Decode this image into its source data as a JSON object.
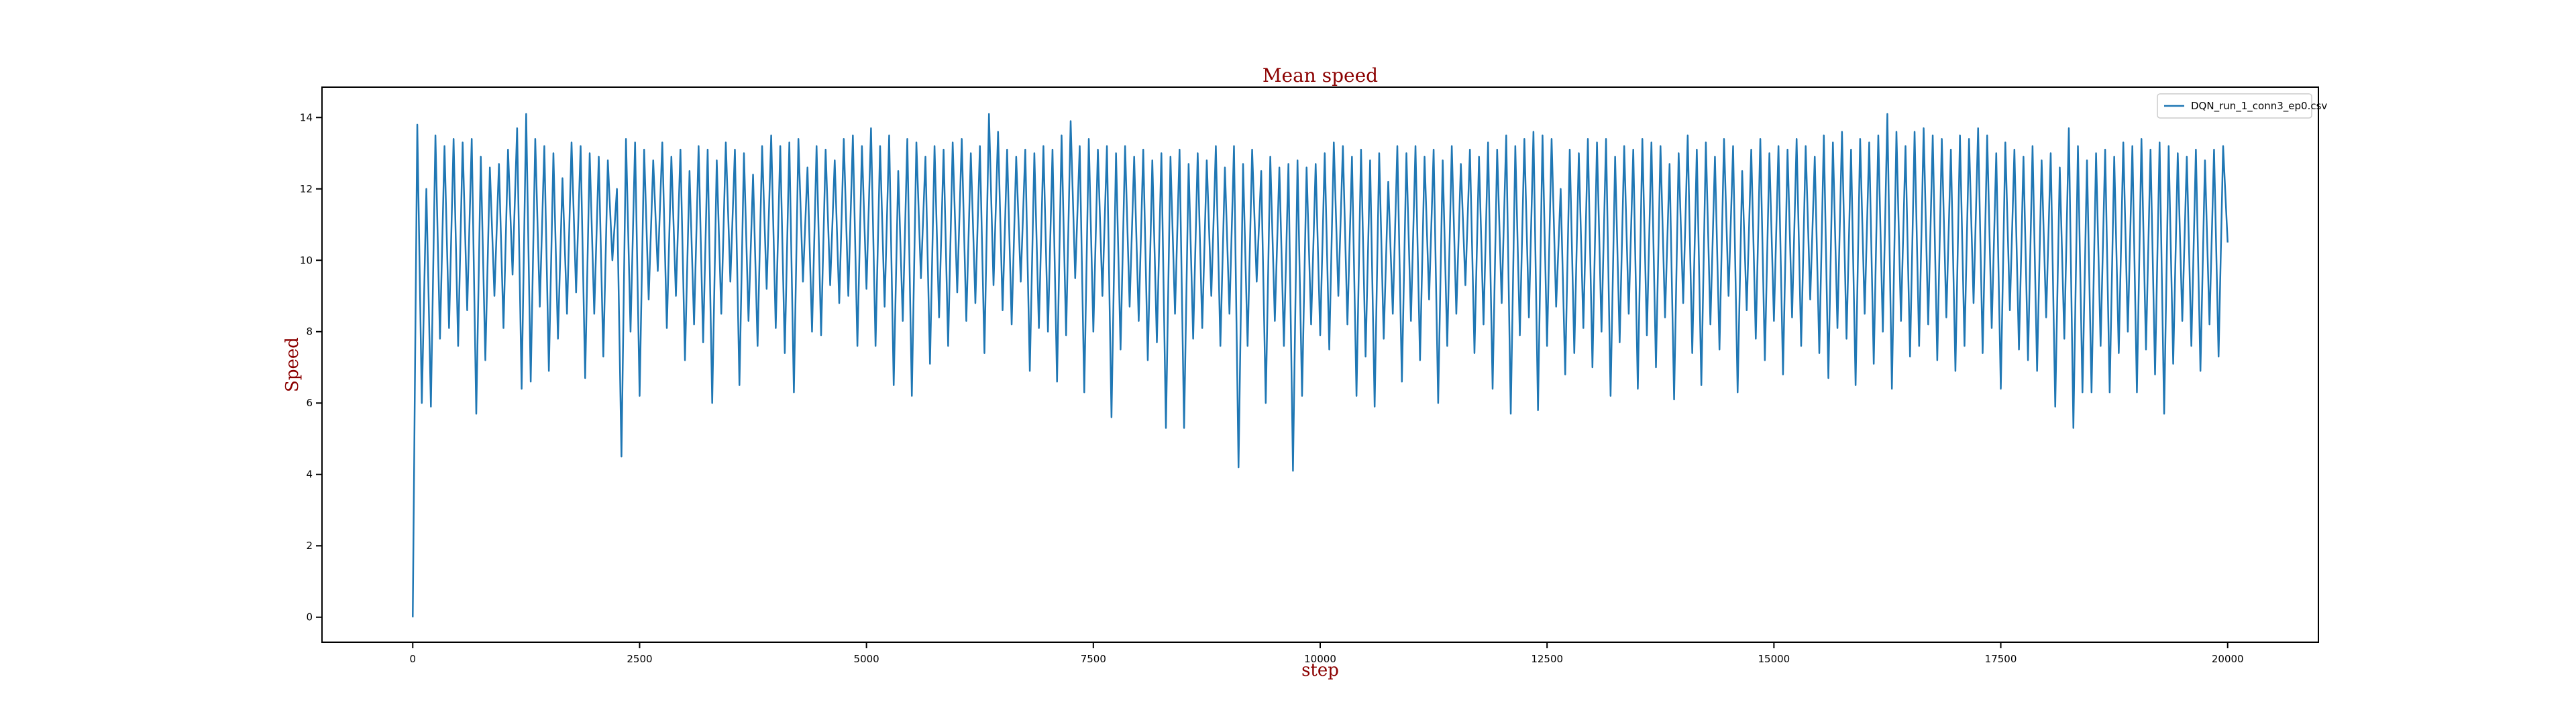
{
  "chart_data": {
    "type": "line",
    "title": "Mean speed",
    "xlabel": "step",
    "ylabel": "Speed",
    "legend": "upper right",
    "xlim": [
      -1000,
      21000
    ],
    "ylim": [
      -0.7,
      14.85
    ],
    "xticks": [
      0,
      2500,
      5000,
      7500,
      10000,
      12500,
      15000,
      17500,
      20000
    ],
    "yticks": [
      0,
      2,
      4,
      6,
      8,
      10,
      12,
      14
    ],
    "x": [
      0,
      50,
      100,
      150,
      200,
      250,
      300,
      350,
      400,
      450,
      500,
      550,
      600,
      650,
      700,
      750,
      800,
      850,
      900,
      950,
      1000,
      1050,
      1100,
      1150,
      1200,
      1250,
      1300,
      1350,
      1400,
      1450,
      1500,
      1550,
      1600,
      1650,
      1700,
      1750,
      1800,
      1850,
      1900,
      1950,
      2000,
      2050,
      2100,
      2150,
      2200,
      2250,
      2300,
      2350,
      2400,
      2450,
      2500,
      2550,
      2600,
      2650,
      2700,
      2750,
      2800,
      2850,
      2900,
      2950,
      3000,
      3050,
      3100,
      3150,
      3200,
      3250,
      3300,
      3350,
      3400,
      3450,
      3500,
      3550,
      3600,
      3650,
      3700,
      3750,
      3800,
      3850,
      3900,
      3950,
      4000,
      4050,
      4100,
      4150,
      4200,
      4250,
      4300,
      4350,
      4400,
      4450,
      4500,
      4550,
      4600,
      4650,
      4700,
      4750,
      4800,
      4850,
      4900,
      4950,
      5000,
      5050,
      5100,
      5150,
      5200,
      5250,
      5300,
      5350,
      5400,
      5450,
      5500,
      5550,
      5600,
      5650,
      5700,
      5750,
      5800,
      5850,
      5900,
      5950,
      6000,
      6050,
      6100,
      6150,
      6200,
      6250,
      6300,
      6350,
      6400,
      6450,
      6500,
      6550,
      6600,
      6650,
      6700,
      6750,
      6800,
      6850,
      6900,
      6950,
      7000,
      7050,
      7100,
      7150,
      7200,
      7250,
      7300,
      7350,
      7400,
      7450,
      7500,
      7550,
      7600,
      7650,
      7700,
      7750,
      7800,
      7850,
      7900,
      7950,
      8000,
      8050,
      8100,
      8150,
      8200,
      8250,
      8300,
      8350,
      8400,
      8450,
      8500,
      8550,
      8600,
      8650,
      8700,
      8750,
      8800,
      8850,
      8900,
      8950,
      9000,
      9050,
      9100,
      9150,
      9200,
      9250,
      9300,
      9350,
      9400,
      9450,
      9500,
      9550,
      9600,
      9650,
      9700,
      9750,
      9800,
      9850,
      9900,
      9950,
      10000,
      10050,
      10100,
      10150,
      10200,
      10250,
      10300,
      10350,
      10400,
      10450,
      10500,
      10550,
      10600,
      10650,
      10700,
      10750,
      10800,
      10850,
      10900,
      10950,
      11000,
      11050,
      11100,
      11150,
      11200,
      11250,
      11300,
      11350,
      11400,
      11450,
      11500,
      11550,
      11600,
      11650,
      11700,
      11750,
      11800,
      11850,
      11900,
      11950,
      12000,
      12050,
      12100,
      12150,
      12200,
      12250,
      12300,
      12350,
      12400,
      12450,
      12500,
      12550,
      12600,
      12650,
      12700,
      12750,
      12800,
      12850,
      12900,
      12950,
      13000,
      13050,
      13100,
      13150,
      13200,
      13250,
      13300,
      13350,
      13400,
      13450,
      13500,
      13550,
      13600,
      13650,
      13700,
      13750,
      13800,
      13850,
      13900,
      13950,
      14000,
      14050,
      14100,
      14150,
      14200,
      14250,
      14300,
      14350,
      14400,
      14450,
      14500,
      14550,
      14600,
      14650,
      14700,
      14750,
      14800,
      14850,
      14900,
      14950,
      15000,
      15050,
      15100,
      15150,
      15200,
      15250,
      15300,
      15350,
      15400,
      15450,
      15500,
      15550,
      15600,
      15650,
      15700,
      15750,
      15800,
      15850,
      15900,
      15950,
      16000,
      16050,
      16100,
      16150,
      16200,
      16250,
      16300,
      16350,
      16400,
      16450,
      16500,
      16550,
      16600,
      16650,
      16700,
      16750,
      16800,
      16850,
      16900,
      16950,
      17000,
      17050,
      17100,
      17150,
      17200,
      17250,
      17300,
      17350,
      17400,
      17450,
      17500,
      17550,
      17600,
      17650,
      17700,
      17750,
      17800,
      17850,
      17900,
      17950,
      18000,
      18050,
      18100,
      18150,
      18200,
      18250,
      18300,
      18350,
      18400,
      18450,
      18500,
      18550,
      18600,
      18650,
      18700,
      18750,
      18800,
      18850,
      18900,
      18950,
      19000,
      19050,
      19100,
      19150,
      19200,
      19250,
      19300,
      19350,
      19400,
      19450,
      19500,
      19550,
      19600,
      19650,
      19700,
      19750,
      19800,
      19850,
      19900,
      19950,
      20000
    ],
    "series": [
      {
        "name": "DQN_run_1_conn3_ep0.csv",
        "color": "#1f77b4",
        "values": [
          0,
          13.8,
          6.0,
          12.0,
          5.9,
          13.5,
          7.8,
          13.2,
          8.1,
          13.4,
          7.6,
          13.3,
          8.6,
          13.4,
          5.7,
          12.9,
          7.2,
          12.6,
          9.0,
          12.7,
          8.1,
          13.1,
          9.6,
          13.7,
          6.4,
          14.1,
          6.6,
          13.4,
          8.7,
          13.2,
          6.9,
          13.0,
          7.8,
          12.3,
          8.5,
          13.3,
          9.1,
          13.2,
          6.7,
          13.0,
          8.5,
          12.9,
          7.3,
          12.8,
          10.0,
          12.0,
          4.5,
          13.4,
          8.0,
          13.3,
          6.2,
          13.1,
          8.9,
          12.8,
          9.7,
          13.3,
          8.1,
          12.9,
          9.0,
          13.1,
          7.2,
          12.5,
          8.2,
          13.2,
          7.7,
          13.1,
          6.0,
          12.8,
          8.5,
          13.3,
          9.4,
          13.1,
          6.5,
          13.0,
          8.3,
          12.4,
          7.6,
          13.2,
          9.2,
          13.5,
          8.1,
          13.2,
          7.4,
          13.3,
          6.3,
          13.4,
          9.4,
          12.6,
          8.0,
          13.2,
          7.9,
          13.1,
          9.3,
          12.8,
          8.8,
          13.4,
          9.0,
          13.5,
          7.6,
          13.2,
          9.2,
          13.7,
          7.6,
          13.2,
          8.7,
          13.5,
          6.5,
          12.5,
          8.3,
          13.4,
          6.2,
          13.3,
          9.5,
          12.9,
          7.1,
          13.2,
          8.4,
          13.1,
          7.6,
          13.3,
          9.1,
          13.4,
          8.3,
          13.0,
          8.8,
          13.2,
          7.4,
          14.1,
          9.3,
          13.6,
          8.6,
          13.1,
          8.2,
          12.9,
          9.4,
          13.1,
          6.9,
          13.0,
          8.1,
          13.2,
          8.0,
          13.1,
          6.6,
          13.5,
          7.9,
          13.9,
          9.5,
          13.2,
          6.3,
          13.4,
          8.0,
          13.1,
          9.0,
          13.2,
          5.6,
          13.0,
          7.5,
          13.2,
          8.7,
          12.9,
          8.3,
          13.1,
          7.2,
          12.8,
          7.7,
          13.0,
          5.3,
          12.9,
          8.5,
          13.1,
          5.3,
          12.7,
          7.8,
          13.0,
          8.1,
          12.8,
          9.0,
          13.2,
          7.6,
          12.6,
          8.5,
          13.2,
          4.2,
          12.7,
          7.6,
          13.1,
          9.4,
          12.5,
          6.0,
          12.9,
          8.3,
          12.6,
          7.6,
          12.7,
          4.1,
          12.8,
          6.2,
          12.6,
          8.2,
          12.7,
          7.9,
          13.0,
          7.5,
          13.3,
          9.0,
          13.2,
          8.2,
          12.9,
          6.2,
          13.1,
          7.3,
          12.8,
          5.9,
          13.0,
          7.8,
          12.2,
          8.5,
          13.2,
          6.6,
          13.0,
          8.3,
          13.2,
          7.2,
          12.9,
          8.9,
          13.1,
          6.0,
          12.8,
          7.6,
          13.2,
          8.5,
          12.7,
          9.3,
          13.1,
          7.4,
          12.9,
          8.2,
          13.3,
          6.4,
          13.1,
          8.8,
          13.5,
          5.7,
          13.2,
          7.9,
          13.4,
          8.4,
          13.6,
          5.8,
          13.5,
          7.6,
          13.4,
          8.7,
          12.0,
          6.8,
          13.1,
          7.4,
          13.0,
          8.1,
          13.4,
          7.0,
          13.3,
          8.0,
          13.4,
          6.2,
          12.9,
          7.7,
          13.2,
          8.5,
          13.1,
          6.4,
          13.4,
          7.9,
          13.3,
          7.0,
          13.2,
          8.4,
          12.7,
          6.1,
          13.0,
          8.8,
          13.5,
          7.4,
          13.1,
          6.5,
          13.3,
          8.2,
          12.9,
          7.5,
          13.4,
          9.0,
          13.2,
          6.3,
          12.5,
          8.6,
          13.1,
          7.8,
          13.4,
          7.2,
          13.0,
          8.3,
          13.2,
          6.8,
          13.1,
          8.4,
          13.4,
          7.6,
          13.2,
          8.9,
          12.9,
          7.4,
          13.5,
          6.7,
          13.3,
          8.1,
          13.6,
          7.8,
          13.1,
          6.5,
          13.4,
          8.5,
          13.3,
          7.1,
          13.5,
          8.0,
          14.1,
          6.4,
          13.6,
          8.3,
          13.2,
          7.3,
          13.6,
          7.6,
          13.7,
          8.2,
          13.5,
          7.2,
          13.4,
          8.4,
          13.1,
          6.9,
          13.5,
          7.6,
          13.4,
          8.8,
          13.7,
          7.4,
          13.5,
          8.1,
          13.0,
          6.4,
          13.3,
          8.6,
          13.1,
          7.5,
          12.9,
          7.2,
          13.2,
          6.9,
          12.8,
          8.4,
          13.0,
          5.9,
          12.6,
          7.8,
          13.7,
          5.3,
          13.2,
          6.3,
          12.8,
          6.3,
          13.0,
          7.6,
          13.1,
          6.3,
          12.9,
          7.4,
          13.3,
          8.0,
          13.2,
          6.3,
          13.4,
          7.5,
          13.1,
          6.8,
          13.3,
          5.7,
          13.2,
          7.1,
          13.0,
          8.3,
          12.9,
          7.6,
          13.1,
          6.9,
          12.8,
          8.2,
          13.1,
          7.3,
          13.2,
          10.5
        ]
      }
    ]
  }
}
